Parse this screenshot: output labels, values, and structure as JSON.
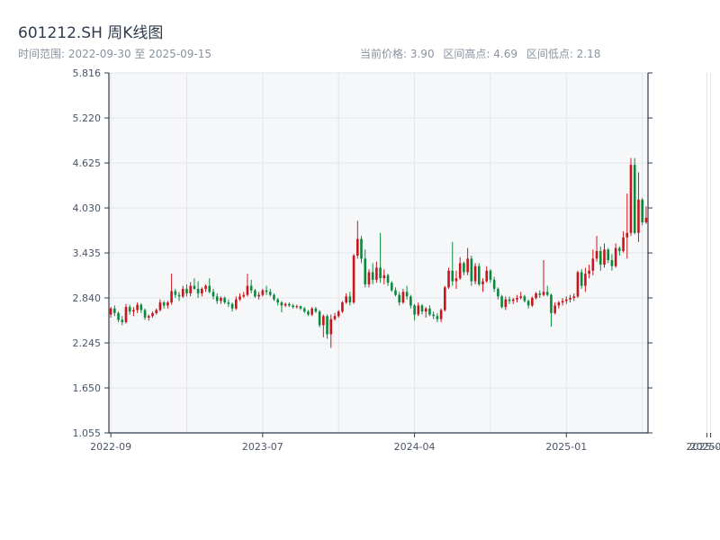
{
  "header": {
    "title": "601212.SH 周K线图",
    "time_range": "时间范围: 2022-09-30 至 2025-09-15",
    "current_price": "当前价格: 3.90",
    "range_high": "区间高点: 4.69",
    "range_low": "区间低点: 2.18"
  },
  "colors": {
    "up": "#c8161d",
    "down": "#0b8a3e",
    "plot_bg": "#f6f7f9",
    "grid": "#e2e5ea",
    "axis": "#2f3b4c"
  },
  "chart_data": {
    "type": "candlestick",
    "title": "601212.SH 周K线图",
    "ylim": [
      1.055,
      5.816
    ],
    "y_ticks": [
      "5.816",
      "5.220",
      "4.625",
      "4.030",
      "3.435",
      "2.840",
      "2.245",
      "1.650",
      "1.055"
    ],
    "x_ticks": [
      {
        "label": "2022-09",
        "i": 0
      },
      {
        "label": "2023-07",
        "i": 40
      },
      {
        "label": "2024-04",
        "i": 80
      },
      {
        "label": "2025-01",
        "i": 120
      },
      {
        "label": "2025-09",
        "i": 157
      },
      {
        "label": "2025-09",
        "i": 158
      }
    ],
    "grid": true,
    "candles": [
      {
        "o": 2.62,
        "h": 2.72,
        "l": 2.58,
        "c": 2.7
      },
      {
        "o": 2.7,
        "h": 2.74,
        "l": 2.6,
        "c": 2.64
      },
      {
        "o": 2.64,
        "h": 2.66,
        "l": 2.52,
        "c": 2.55
      },
      {
        "o": 2.55,
        "h": 2.6,
        "l": 2.48,
        "c": 2.52
      },
      {
        "o": 2.52,
        "h": 2.76,
        "l": 2.5,
        "c": 2.72
      },
      {
        "o": 2.72,
        "h": 2.75,
        "l": 2.62,
        "c": 2.66
      },
      {
        "o": 2.66,
        "h": 2.72,
        "l": 2.6,
        "c": 2.68
      },
      {
        "o": 2.68,
        "h": 2.78,
        "l": 2.64,
        "c": 2.75
      },
      {
        "o": 2.75,
        "h": 2.77,
        "l": 2.64,
        "c": 2.68
      },
      {
        "o": 2.68,
        "h": 2.7,
        "l": 2.55,
        "c": 2.58
      },
      {
        "o": 2.58,
        "h": 2.62,
        "l": 2.54,
        "c": 2.6
      },
      {
        "o": 2.6,
        "h": 2.66,
        "l": 2.58,
        "c": 2.64
      },
      {
        "o": 2.64,
        "h": 2.7,
        "l": 2.62,
        "c": 2.68
      },
      {
        "o": 2.68,
        "h": 2.82,
        "l": 2.66,
        "c": 2.78
      },
      {
        "o": 2.78,
        "h": 2.8,
        "l": 2.7,
        "c": 2.74
      },
      {
        "o": 2.74,
        "h": 2.8,
        "l": 2.7,
        "c": 2.78
      },
      {
        "o": 2.78,
        "h": 3.16,
        "l": 2.75,
        "c": 2.93
      },
      {
        "o": 2.93,
        "h": 2.96,
        "l": 2.84,
        "c": 2.88
      },
      {
        "o": 2.88,
        "h": 2.92,
        "l": 2.8,
        "c": 2.86
      },
      {
        "o": 2.86,
        "h": 3.0,
        "l": 2.84,
        "c": 2.96
      },
      {
        "o": 2.96,
        "h": 3.02,
        "l": 2.86,
        "c": 2.9
      },
      {
        "o": 2.9,
        "h": 3.05,
        "l": 2.86,
        "c": 3.0
      },
      {
        "o": 3.0,
        "h": 3.1,
        "l": 2.95,
        "c": 2.96
      },
      {
        "o": 2.96,
        "h": 3.06,
        "l": 2.84,
        "c": 2.9
      },
      {
        "o": 2.9,
        "h": 2.98,
        "l": 2.86,
        "c": 2.96
      },
      {
        "o": 2.96,
        "h": 3.02,
        "l": 2.92,
        "c": 3.0
      },
      {
        "o": 3.0,
        "h": 3.1,
        "l": 2.9,
        "c": 2.92
      },
      {
        "o": 2.92,
        "h": 2.96,
        "l": 2.82,
        "c": 2.86
      },
      {
        "o": 2.86,
        "h": 2.9,
        "l": 2.76,
        "c": 2.8
      },
      {
        "o": 2.8,
        "h": 2.86,
        "l": 2.76,
        "c": 2.84
      },
      {
        "o": 2.84,
        "h": 2.86,
        "l": 2.76,
        "c": 2.78
      },
      {
        "o": 2.78,
        "h": 2.82,
        "l": 2.72,
        "c": 2.76
      },
      {
        "o": 2.76,
        "h": 2.78,
        "l": 2.66,
        "c": 2.7
      },
      {
        "o": 2.7,
        "h": 2.86,
        "l": 2.68,
        "c": 2.82
      },
      {
        "o": 2.82,
        "h": 2.9,
        "l": 2.8,
        "c": 2.86
      },
      {
        "o": 2.86,
        "h": 2.92,
        "l": 2.84,
        "c": 2.88
      },
      {
        "o": 2.88,
        "h": 3.16,
        "l": 2.86,
        "c": 3.0
      },
      {
        "o": 3.0,
        "h": 3.08,
        "l": 2.9,
        "c": 2.94
      },
      {
        "o": 2.94,
        "h": 2.96,
        "l": 2.84,
        "c": 2.86
      },
      {
        "o": 2.86,
        "h": 2.92,
        "l": 2.82,
        "c": 2.88
      },
      {
        "o": 2.88,
        "h": 2.96,
        "l": 2.86,
        "c": 2.94
      },
      {
        "o": 2.94,
        "h": 3.0,
        "l": 2.88,
        "c": 2.92
      },
      {
        "o": 2.92,
        "h": 2.96,
        "l": 2.86,
        "c": 2.88
      },
      {
        "o": 2.88,
        "h": 2.9,
        "l": 2.8,
        "c": 2.82
      },
      {
        "o": 2.82,
        "h": 2.84,
        "l": 2.74,
        "c": 2.78
      },
      {
        "o": 2.78,
        "h": 2.8,
        "l": 2.65,
        "c": 2.74
      },
      {
        "o": 2.74,
        "h": 2.78,
        "l": 2.72,
        "c": 2.76
      },
      {
        "o": 2.76,
        "h": 2.78,
        "l": 2.72,
        "c": 2.74
      },
      {
        "o": 2.74,
        "h": 2.76,
        "l": 2.7,
        "c": 2.72
      },
      {
        "o": 2.72,
        "h": 2.75,
        "l": 2.7,
        "c": 2.73
      },
      {
        "o": 2.73,
        "h": 2.74,
        "l": 2.68,
        "c": 2.7
      },
      {
        "o": 2.7,
        "h": 2.72,
        "l": 2.64,
        "c": 2.66
      },
      {
        "o": 2.66,
        "h": 2.68,
        "l": 2.6,
        "c": 2.62
      },
      {
        "o": 2.62,
        "h": 2.72,
        "l": 2.6,
        "c": 2.7
      },
      {
        "o": 2.7,
        "h": 2.72,
        "l": 2.64,
        "c": 2.66
      },
      {
        "o": 2.66,
        "h": 2.68,
        "l": 2.45,
        "c": 2.48
      },
      {
        "o": 2.48,
        "h": 2.62,
        "l": 2.32,
        "c": 2.6
      },
      {
        "o": 2.6,
        "h": 2.62,
        "l": 2.3,
        "c": 2.36
      },
      {
        "o": 2.36,
        "h": 2.62,
        "l": 2.18,
        "c": 2.56
      },
      {
        "o": 2.56,
        "h": 2.64,
        "l": 2.54,
        "c": 2.6
      },
      {
        "o": 2.6,
        "h": 2.68,
        "l": 2.58,
        "c": 2.66
      },
      {
        "o": 2.66,
        "h": 2.8,
        "l": 2.64,
        "c": 2.78
      },
      {
        "o": 2.78,
        "h": 2.9,
        "l": 2.76,
        "c": 2.86
      },
      {
        "o": 2.86,
        "h": 2.92,
        "l": 2.74,
        "c": 2.78
      },
      {
        "o": 2.78,
        "h": 3.42,
        "l": 2.76,
        "c": 3.4
      },
      {
        "o": 3.4,
        "h": 3.86,
        "l": 3.36,
        "c": 3.62
      },
      {
        "o": 3.62,
        "h": 3.66,
        "l": 3.3,
        "c": 3.36
      },
      {
        "o": 3.36,
        "h": 3.48,
        "l": 2.98,
        "c": 3.02
      },
      {
        "o": 3.02,
        "h": 3.22,
        "l": 2.98,
        "c": 3.18
      },
      {
        "o": 3.18,
        "h": 3.3,
        "l": 3.02,
        "c": 3.08
      },
      {
        "o": 3.08,
        "h": 3.32,
        "l": 3.04,
        "c": 3.24
      },
      {
        "o": 3.24,
        "h": 3.7,
        "l": 3.04,
        "c": 3.1
      },
      {
        "o": 3.1,
        "h": 3.22,
        "l": 3.02,
        "c": 3.14
      },
      {
        "o": 3.14,
        "h": 3.16,
        "l": 3.0,
        "c": 3.04
      },
      {
        "o": 3.04,
        "h": 3.06,
        "l": 2.92,
        "c": 2.94
      },
      {
        "o": 2.94,
        "h": 2.98,
        "l": 2.86,
        "c": 2.88
      },
      {
        "o": 2.88,
        "h": 2.92,
        "l": 2.74,
        "c": 2.78
      },
      {
        "o": 2.78,
        "h": 2.96,
        "l": 2.76,
        "c": 2.92
      },
      {
        "o": 2.92,
        "h": 3.0,
        "l": 2.82,
        "c": 2.86
      },
      {
        "o": 2.86,
        "h": 2.88,
        "l": 2.7,
        "c": 2.74
      },
      {
        "o": 2.74,
        "h": 2.76,
        "l": 2.54,
        "c": 2.62
      },
      {
        "o": 2.62,
        "h": 2.78,
        "l": 2.6,
        "c": 2.74
      },
      {
        "o": 2.74,
        "h": 2.76,
        "l": 2.62,
        "c": 2.66
      },
      {
        "o": 2.66,
        "h": 2.72,
        "l": 2.58,
        "c": 2.7
      },
      {
        "o": 2.7,
        "h": 2.74,
        "l": 2.6,
        "c": 2.62
      },
      {
        "o": 2.62,
        "h": 2.66,
        "l": 2.56,
        "c": 2.6
      },
      {
        "o": 2.6,
        "h": 2.64,
        "l": 2.52,
        "c": 2.56
      },
      {
        "o": 2.56,
        "h": 2.7,
        "l": 2.52,
        "c": 2.68
      },
      {
        "o": 2.68,
        "h": 3.0,
        "l": 2.66,
        "c": 2.98
      },
      {
        "o": 2.98,
        "h": 3.24,
        "l": 2.96,
        "c": 3.2
      },
      {
        "o": 3.2,
        "h": 3.58,
        "l": 3.0,
        "c": 3.06
      },
      {
        "o": 3.06,
        "h": 3.2,
        "l": 2.96,
        "c": 3.1
      },
      {
        "o": 3.1,
        "h": 3.38,
        "l": 3.08,
        "c": 3.3
      },
      {
        "o": 3.3,
        "h": 3.32,
        "l": 3.14,
        "c": 3.18
      },
      {
        "o": 3.18,
        "h": 3.5,
        "l": 3.14,
        "c": 3.36
      },
      {
        "o": 3.36,
        "h": 3.4,
        "l": 3.0,
        "c": 3.06
      },
      {
        "o": 3.06,
        "h": 3.3,
        "l": 3.02,
        "c": 3.26
      },
      {
        "o": 3.26,
        "h": 3.3,
        "l": 3.0,
        "c": 3.02
      },
      {
        "o": 3.02,
        "h": 3.1,
        "l": 2.92,
        "c": 3.06
      },
      {
        "o": 3.06,
        "h": 3.26,
        "l": 3.04,
        "c": 3.2
      },
      {
        "o": 3.2,
        "h": 3.22,
        "l": 3.04,
        "c": 3.08
      },
      {
        "o": 3.08,
        "h": 3.12,
        "l": 2.92,
        "c": 2.96
      },
      {
        "o": 2.96,
        "h": 2.98,
        "l": 2.82,
        "c": 2.86
      },
      {
        "o": 2.86,
        "h": 2.88,
        "l": 2.7,
        "c": 2.72
      },
      {
        "o": 2.72,
        "h": 2.86,
        "l": 2.68,
        "c": 2.82
      },
      {
        "o": 2.82,
        "h": 2.86,
        "l": 2.76,
        "c": 2.8
      },
      {
        "o": 2.8,
        "h": 2.84,
        "l": 2.76,
        "c": 2.82
      },
      {
        "o": 2.82,
        "h": 2.88,
        "l": 2.78,
        "c": 2.84
      },
      {
        "o": 2.84,
        "h": 2.92,
        "l": 2.82,
        "c": 2.86
      },
      {
        "o": 2.86,
        "h": 2.88,
        "l": 2.78,
        "c": 2.8
      },
      {
        "o": 2.8,
        "h": 2.82,
        "l": 2.7,
        "c": 2.74
      },
      {
        "o": 2.74,
        "h": 2.86,
        "l": 2.72,
        "c": 2.84
      },
      {
        "o": 2.84,
        "h": 2.92,
        "l": 2.82,
        "c": 2.9
      },
      {
        "o": 2.9,
        "h": 2.94,
        "l": 2.84,
        "c": 2.88
      },
      {
        "o": 2.88,
        "h": 3.34,
        "l": 2.86,
        "c": 2.92
      },
      {
        "o": 2.92,
        "h": 3.0,
        "l": 2.86,
        "c": 2.88
      },
      {
        "o": 2.88,
        "h": 2.9,
        "l": 2.46,
        "c": 2.64
      },
      {
        "o": 2.64,
        "h": 2.78,
        "l": 2.62,
        "c": 2.74
      },
      {
        "o": 2.74,
        "h": 2.8,
        "l": 2.7,
        "c": 2.78
      },
      {
        "o": 2.78,
        "h": 2.84,
        "l": 2.74,
        "c": 2.8
      },
      {
        "o": 2.8,
        "h": 2.86,
        "l": 2.76,
        "c": 2.82
      },
      {
        "o": 2.82,
        "h": 2.88,
        "l": 2.78,
        "c": 2.84
      },
      {
        "o": 2.84,
        "h": 2.9,
        "l": 2.8,
        "c": 2.86
      },
      {
        "o": 2.86,
        "h": 3.2,
        "l": 2.84,
        "c": 3.18
      },
      {
        "o": 3.18,
        "h": 3.22,
        "l": 2.96,
        "c": 3.0
      },
      {
        "o": 3.0,
        "h": 3.24,
        "l": 2.92,
        "c": 3.16
      },
      {
        "o": 3.16,
        "h": 3.28,
        "l": 3.1,
        "c": 3.2
      },
      {
        "o": 3.2,
        "h": 3.48,
        "l": 3.14,
        "c": 3.36
      },
      {
        "o": 3.36,
        "h": 3.66,
        "l": 3.32,
        "c": 3.46
      },
      {
        "o": 3.46,
        "h": 3.52,
        "l": 3.2,
        "c": 3.28
      },
      {
        "o": 3.28,
        "h": 3.56,
        "l": 3.24,
        "c": 3.48
      },
      {
        "o": 3.48,
        "h": 3.5,
        "l": 3.3,
        "c": 3.34
      },
      {
        "o": 3.34,
        "h": 3.42,
        "l": 3.2,
        "c": 3.26
      },
      {
        "o": 3.26,
        "h": 3.56,
        "l": 3.24,
        "c": 3.5
      },
      {
        "o": 3.5,
        "h": 3.52,
        "l": 3.4,
        "c": 3.46
      },
      {
        "o": 3.46,
        "h": 3.72,
        "l": 3.44,
        "c": 3.64
      },
      {
        "o": 3.64,
        "h": 4.22,
        "l": 3.36,
        "c": 3.7
      },
      {
        "o": 3.7,
        "h": 4.69,
        "l": 3.66,
        "c": 4.6
      },
      {
        "o": 4.6,
        "h": 4.69,
        "l": 3.68,
        "c": 3.7
      },
      {
        "o": 3.7,
        "h": 4.5,
        "l": 3.58,
        "c": 4.14
      },
      {
        "o": 4.14,
        "h": 4.16,
        "l": 3.8,
        "c": 3.84
      },
      {
        "o": 3.84,
        "h": 4.05,
        "l": 3.82,
        "c": 3.9
      }
    ]
  }
}
